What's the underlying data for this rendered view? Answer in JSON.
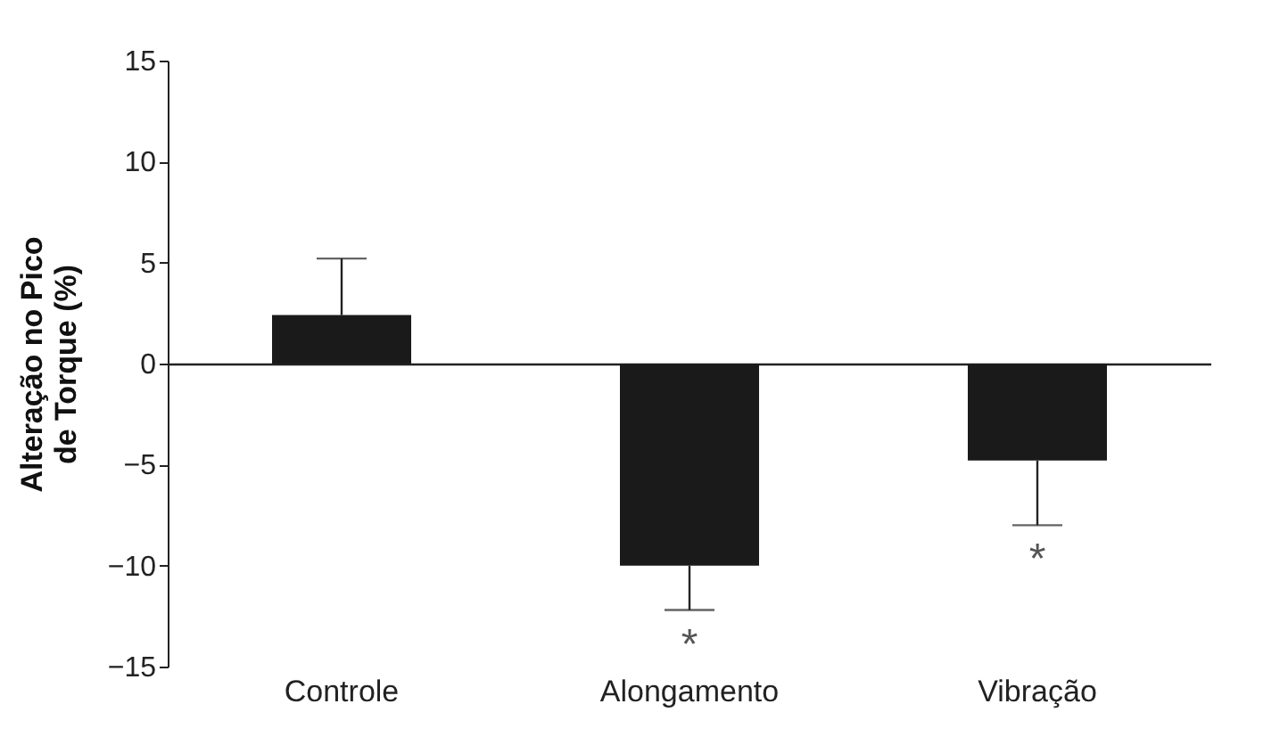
{
  "chart_data": {
    "type": "bar",
    "categories": [
      "Controle",
      "Alongamento",
      "Vibração"
    ],
    "values": [
      2.4,
      -10,
      -4.8
    ],
    "errors": [
      [
        2.4,
        5.2
      ],
      [
        -12.2,
        -10
      ],
      [
        -8.0,
        -4.8
      ]
    ],
    "color": "#1a1a1a",
    "ylabel": "Alteração no Pico\nde Torque (%)",
    "ylim": [
      -15,
      15
    ],
    "yticks": [
      -15,
      -10,
      -5,
      0,
      5,
      10,
      15
    ],
    "annotations": [
      "*",
      "*"
    ]
  }
}
